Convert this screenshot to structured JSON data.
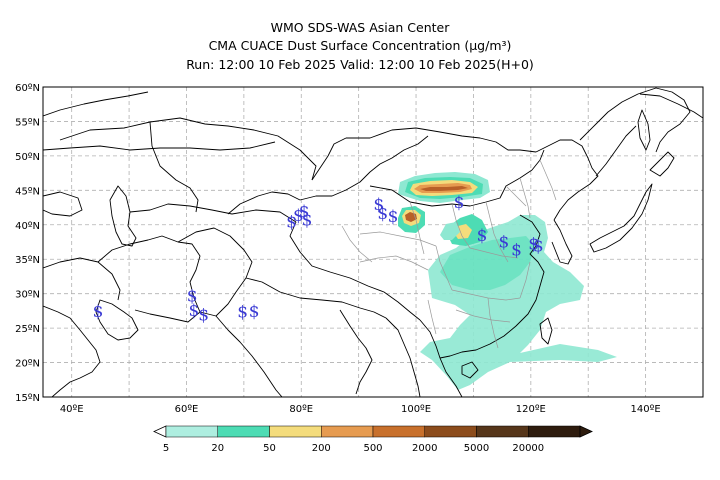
{
  "header": {
    "line1": "WMO SDS-WAS Asian Center",
    "line2": "CMA CUACE Dust Surface Concentration (μg/m³)",
    "line3": "Run: 12:00 10 Feb 2025    Valid: 12:00 10 Feb 2025(H+0)"
  },
  "map": {
    "lat_labels": [
      "15ºN",
      "20ºN",
      "25ºN",
      "30ºN",
      "35ºN",
      "40ºN",
      "45ºN",
      "50ºN",
      "55ºN",
      "60ºN"
    ],
    "lon_labels": [
      "40ºE",
      "60ºE",
      "80ºE",
      "100ºE",
      "120ºE",
      "140ºE"
    ],
    "lat_range": [
      15,
      60
    ],
    "lon_range": [
      35,
      150
    ],
    "grid": true,
    "dust_symbol": "$",
    "dust_symbol_locations": [
      [
        44.6,
        27.5
      ],
      [
        61,
        29.7
      ],
      [
        61.3,
        27.6
      ],
      [
        63,
        27
      ],
      [
        69.8,
        27.4
      ],
      [
        71.8,
        27.5
      ],
      [
        78.3,
        40.5
      ],
      [
        79.5,
        41.4
      ],
      [
        80.5,
        42
      ],
      [
        81,
        40.8
      ],
      [
        93.5,
        43
      ],
      [
        94.2,
        41.7
      ],
      [
        96,
        41.3
      ],
      [
        107.5,
        43.3
      ],
      [
        111.5,
        38.5
      ],
      [
        115.3,
        37.6
      ],
      [
        117.5,
        36.4
      ],
      [
        120.5,
        37.3
      ],
      [
        121.3,
        37
      ]
    ]
  },
  "colorbar": {
    "labels": [
      "5",
      "20",
      "50",
      "200",
      "500",
      "2000",
      "5000",
      "20000"
    ],
    "colors": [
      "#aeeee0",
      "#4ddcb4",
      "#f4dc7c",
      "#e69b50",
      "#c8702c",
      "#8c4c1c",
      "#56361a",
      "#2e1c0e"
    ]
  },
  "colors": {
    "dust_low": "#8ee8d2",
    "dust_mid": "#4ddcb4",
    "dust_50": "#f4dc7c",
    "dust_200": "#e69b50",
    "dust_500": "#b86028",
    "symbol": "#3a3ad4",
    "coast": "#000000",
    "province": "#9a9a9a"
  }
}
